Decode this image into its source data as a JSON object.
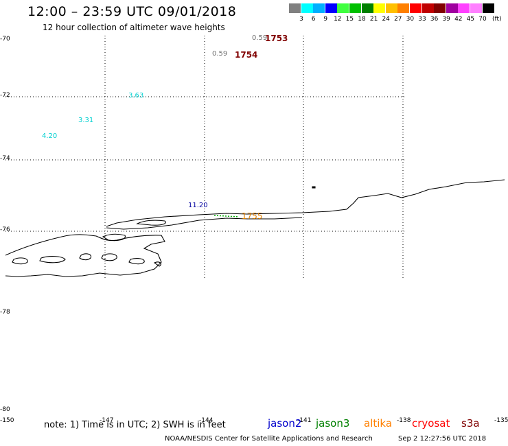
{
  "title": "12:00 – 23:59 UTC 09/01/2018",
  "subtitle": "12 hour collection of altimeter wave heights",
  "legend": {
    "colors": [
      "#808080",
      "#00ffff",
      "#00b0ff",
      "#0000ff",
      "#40ff40",
      "#00c000",
      "#008000",
      "#ffff00",
      "#ffc000",
      "#ff8000",
      "#ff0000",
      "#c00000",
      "#800000",
      "#a000a0",
      "#ff40ff",
      "#ff80ff",
      "#000000"
    ],
    "labels": [
      "3",
      "6",
      "9",
      "12",
      "15",
      "18",
      "21",
      "24",
      "27",
      "30",
      "33",
      "36",
      "39",
      "42",
      "45",
      "70"
    ],
    "unit": "(ft)"
  },
  "axes": {
    "lat_labels": [
      "-70",
      "-72",
      "-74",
      "-76",
      "-78",
      "-80"
    ],
    "lon_labels": [
      "-150",
      "-147",
      "-144",
      "-141",
      "-138",
      "-135"
    ]
  },
  "observations": [
    {
      "value": "0.59",
      "color": "#707070"
    },
    {
      "value": "0.59",
      "color": "#707070"
    },
    {
      "value": "3.63",
      "color": "#00d0d0"
    },
    {
      "value": "3.31",
      "color": "#00d0d0"
    },
    {
      "value": "4.20",
      "color": "#00d0d0"
    },
    {
      "value": "11.20",
      "color": "#0000a0"
    },
    {
      "value": "1755",
      "color": "#e08000"
    }
  ],
  "time_labels": [
    {
      "value": "1753",
      "color": "#800000"
    },
    {
      "value": "1754",
      "color": "#800000"
    }
  ],
  "footer": {
    "note": "note: 1) Time is in UTC; 2) SWH is in feet",
    "satellites": [
      {
        "name": "jason2",
        "color": "#0000cc"
      },
      {
        "name": "jason3",
        "color": "#008000"
      },
      {
        "name": "altika",
        "color": "#ff8000"
      },
      {
        "name": "cryosat",
        "color": "#ff0000"
      },
      {
        "name": "s3a",
        "color": "#800000"
      }
    ],
    "credit": "NOAA/NESDIS Center for Satellite Applications and Research",
    "timestamp": "Sep  2 12:27:56 UTC 2018"
  }
}
